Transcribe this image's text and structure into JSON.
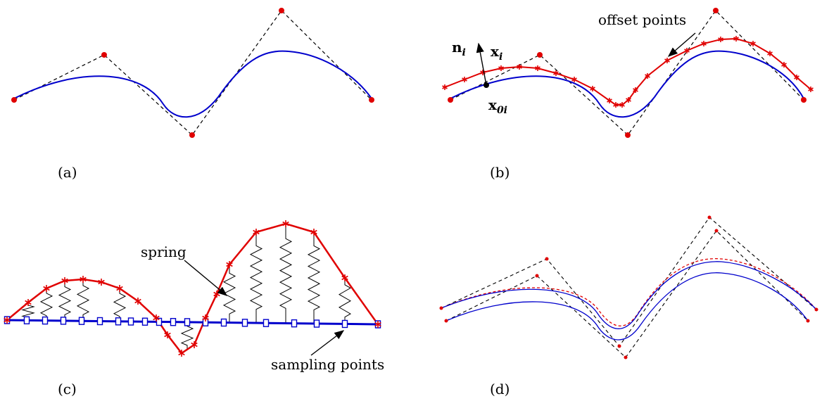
{
  "panels": {
    "a": {
      "caption": "(a)"
    },
    "b": {
      "caption": "(b)",
      "offset_label": "offset points",
      "normal_label": "n",
      "normal_sub": "i",
      "point_label": "x",
      "point_sub": "i",
      "base_label": "x",
      "base_sub": "0i"
    },
    "c": {
      "caption": "(c)",
      "spring_label": "spring",
      "sampling_label": "sampling points"
    },
    "d": {
      "caption": "(d)"
    }
  },
  "colors": {
    "curve": "#0000cc",
    "offset": "#e00000",
    "control_point": "#e00000",
    "control_polygon": "#000000"
  }
}
